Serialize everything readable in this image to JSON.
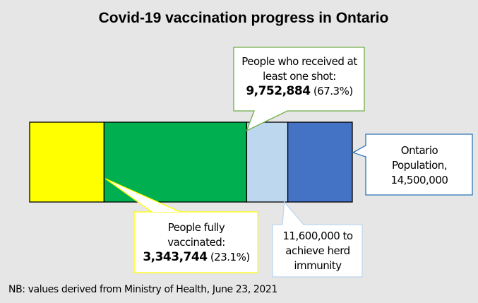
{
  "chart_data": {
    "type": "bar",
    "title": "Covid-19 vaccination progress in Ontario",
    "orientation": "horizontal-stacked",
    "total": 14500000,
    "segments": [
      {
        "name": "People fully vaccinated",
        "value": 3343744,
        "color": "#ffff00"
      },
      {
        "name": "People who received at least one shot",
        "value": 9752884,
        "color": "#00b050"
      },
      {
        "name": "Herd immunity target",
        "value": 11600000,
        "color": "#bdd7ee"
      },
      {
        "name": "Ontario Population",
        "value": 14500000,
        "color": "#4472c4"
      }
    ],
    "annotations": {
      "one_shot": {
        "line1": "People who received at",
        "line2": "least one shot:",
        "value": "9,752,884",
        "pct": "(67.3%)",
        "border": "#70ad47"
      },
      "fully": {
        "line1": "People fully",
        "line2": "vaccinated:",
        "value": "3,343,744",
        "pct": "(23.1%)",
        "border": "#ffff00"
      },
      "herd": {
        "line1": "11,600,000 to",
        "line2": "achieve herd",
        "line3": "immunity",
        "border": "#bdd7ee"
      },
      "population": {
        "line1": "Ontario",
        "line2": "Population,",
        "line3": "14,500,000",
        "border": "#2e75b6"
      }
    },
    "note": "NB: values derived from Ministry of Health, June 23, 2021"
  }
}
